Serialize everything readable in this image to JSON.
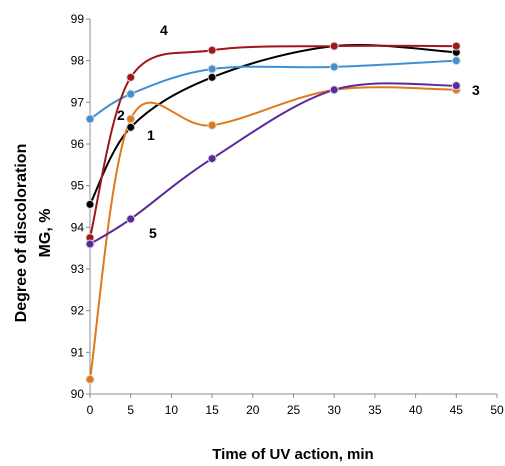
{
  "chart_data": {
    "type": "line",
    "xlabel": "Time of UV action, min",
    "ylabel_line1": "Degree of discoloration",
    "ylabel_line2": "MG, %",
    "xlim": [
      0,
      50
    ],
    "ylim": [
      90,
      99
    ],
    "xticks": [
      0,
      5,
      10,
      15,
      20,
      25,
      30,
      35,
      40,
      45,
      50
    ],
    "yticks": [
      90,
      91,
      92,
      93,
      94,
      95,
      96,
      97,
      98,
      99
    ],
    "grid": false,
    "legend": "none",
    "series": [
      {
        "name": "1",
        "color": "#000000",
        "x": [
          0,
          5,
          15,
          30,
          45
        ],
        "y": [
          94.55,
          96.4,
          97.6,
          98.35,
          98.2
        ]
      },
      {
        "name": "2",
        "color": "#3f8fd2",
        "x": [
          0,
          5,
          15,
          30,
          45
        ],
        "y": [
          96.6,
          97.2,
          97.8,
          97.85,
          98.0
        ]
      },
      {
        "name": "3",
        "color": "#e0781c",
        "x": [
          0,
          5,
          15,
          30,
          45
        ],
        "y": [
          90.35,
          96.6,
          96.45,
          97.3,
          97.3
        ]
      },
      {
        "name": "4",
        "color": "#a0161a",
        "x": [
          0,
          5,
          15,
          30,
          45
        ],
        "y": [
          93.75,
          97.6,
          98.25,
          98.35,
          98.35
        ]
      },
      {
        "name": "5",
        "color": "#5a2a9a",
        "x": [
          0,
          5,
          15,
          30,
          45
        ],
        "y": [
          93.6,
          94.2,
          95.65,
          97.3,
          97.4
        ]
      }
    ]
  }
}
